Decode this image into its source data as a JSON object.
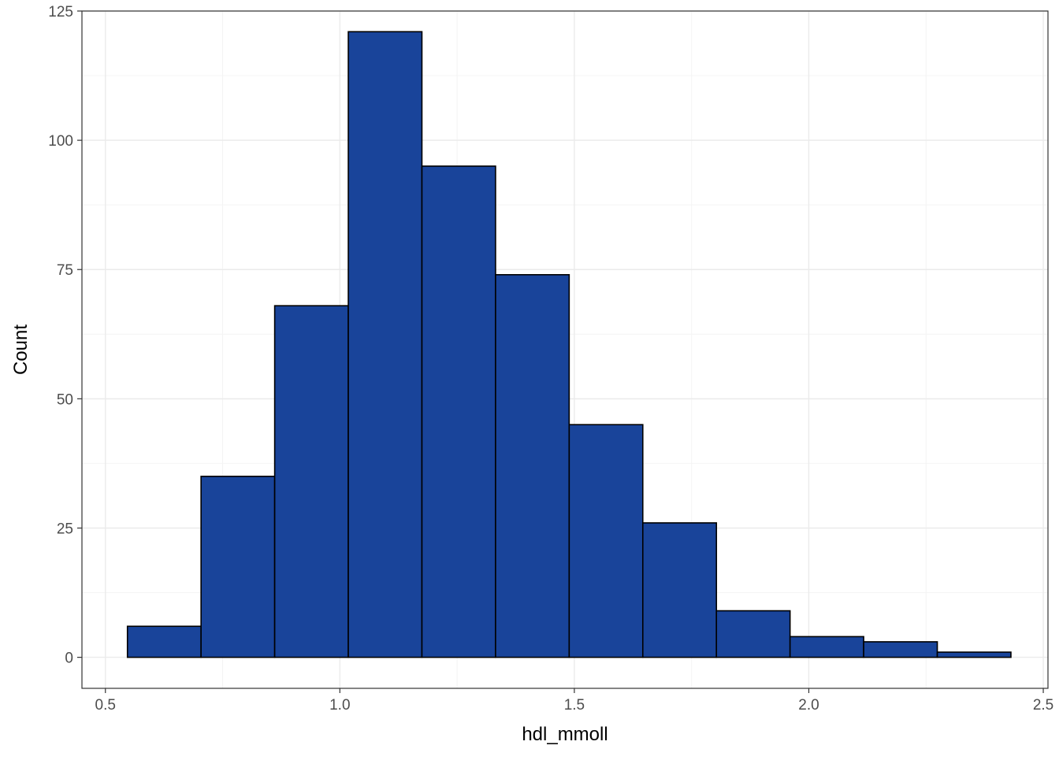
{
  "chart_data": {
    "type": "bar",
    "subtype": "histogram",
    "title": "",
    "xlabel": "hdl_mmoll",
    "ylabel": "Count",
    "xlim": [
      0.45,
      2.51
    ],
    "ylim": [
      -6,
      125
    ],
    "x_ticks": [
      0.5,
      1.0,
      1.5,
      2.0,
      2.5
    ],
    "x_tick_labels": [
      "0.5",
      "1.0",
      "1.5",
      "2.0",
      "2.5"
    ],
    "y_ticks": [
      0,
      25,
      50,
      75,
      100,
      125
    ],
    "y_tick_labels": [
      "0",
      "25",
      "50",
      "75",
      "100",
      "125"
    ],
    "bin_edges": [
      0.547,
      0.704,
      0.861,
      1.018,
      1.175,
      1.332,
      1.489,
      1.646,
      1.803,
      1.96,
      2.117,
      2.274,
      2.431
    ],
    "values": [
      6,
      35,
      68,
      121,
      95,
      74,
      45,
      26,
      9,
      4,
      3,
      1
    ],
    "grid": true,
    "legend": "none",
    "colors": {
      "bar_fill": "#19449a",
      "bar_stroke": "#000000",
      "grid_major": "#ebebeb",
      "grid_minor": "#f4f4f4",
      "panel_border": "#333333",
      "tick_label": "#4d4d4d",
      "background": "#ffffff"
    }
  }
}
